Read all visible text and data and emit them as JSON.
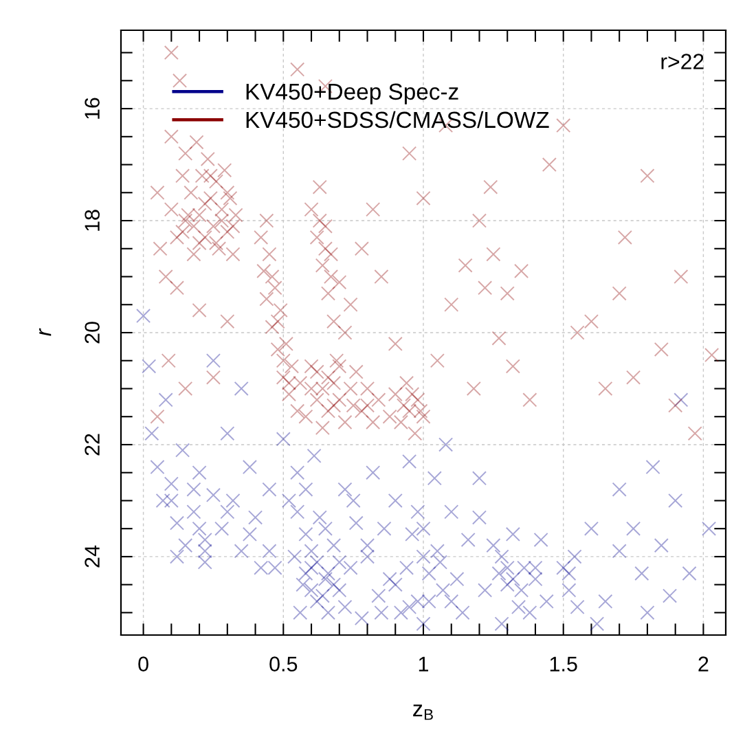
{
  "chart_data": {
    "type": "scatter",
    "xlabel": "z$_{B}$",
    "ylabel": "r",
    "annotations": [
      "r>22"
    ],
    "xlim": [
      -0.08,
      2.08
    ],
    "ylim": [
      25.4,
      14.6
    ],
    "xticks": [
      0,
      0.5,
      1,
      1.5,
      2
    ],
    "yticks": [
      16,
      18,
      20,
      22,
      24
    ],
    "grid": true,
    "legend": "top left",
    "marker": "cross",
    "series": [
      {
        "name": "KV450+Deep Spec-z",
        "color": "#00008b",
        "x": [
          0.0,
          0.02,
          0.03,
          0.05,
          0.07,
          0.08,
          0.1,
          0.12,
          0.14,
          0.15,
          0.18,
          0.2,
          0.22,
          0.22,
          0.25,
          0.28,
          0.3,
          0.32,
          0.35,
          0.38,
          0.4,
          0.42,
          0.45,
          0.12,
          0.35,
          0.25,
          0.5,
          0.52,
          0.54,
          0.55,
          0.57,
          0.58,
          0.6,
          0.61,
          0.62,
          0.63,
          0.65,
          0.66,
          0.68,
          0.7,
          0.72,
          0.74,
          0.76,
          0.78,
          0.8,
          0.82,
          0.84,
          0.86,
          0.47,
          0.56,
          0.88,
          0.9,
          0.92,
          0.94,
          0.96,
          0.98,
          1.0,
          1.0,
          1.02,
          1.04,
          1.05,
          1.07,
          1.1,
          1.12,
          1.14,
          1.16,
          0.95,
          1.08,
          1.2,
          1.22,
          1.25,
          1.27,
          1.3,
          1.32,
          1.34,
          1.36,
          1.38,
          1.4,
          1.42,
          1.44,
          1.28,
          1.2,
          1.5,
          1.52,
          1.54,
          1.55,
          1.6,
          1.65,
          1.7,
          1.75,
          1.78,
          1.8,
          1.85,
          1.88,
          1.9,
          1.95,
          2.02,
          1.82,
          1.62,
          1.92,
          1.7,
          0.58,
          0.6,
          0.62,
          0.64,
          0.66,
          0.68,
          0.7,
          0.72,
          0.6,
          0.55,
          0.58,
          0.65,
          0.75,
          0.8,
          0.9,
          0.95,
          1.0,
          1.02,
          0.98,
          1.06,
          1.3,
          1.32,
          1.35,
          1.4,
          1.28,
          1.52,
          0.2,
          0.22,
          0.18,
          0.3,
          0.1,
          0.38,
          0.45,
          0.85,
          1.1
        ],
        "values": [
          19.7,
          20.6,
          21.8,
          22.4,
          23.0,
          21.2,
          22.7,
          23.4,
          22.1,
          23.8,
          23.2,
          22.5,
          23.7,
          24.1,
          22.9,
          23.5,
          21.8,
          23.0,
          23.9,
          22.4,
          23.3,
          24.2,
          22.8,
          24.0,
          21.0,
          20.5,
          21.9,
          23.0,
          24.0,
          22.5,
          24.5,
          23.6,
          24.2,
          22.2,
          24.8,
          23.3,
          24.4,
          25.0,
          23.8,
          24.6,
          22.8,
          24.2,
          23.4,
          25.1,
          24.0,
          22.5,
          24.7,
          23.5,
          24.2,
          25.0,
          24.4,
          23.0,
          25.0,
          24.2,
          23.6,
          24.8,
          23.5,
          25.2,
          24.3,
          22.6,
          23.9,
          24.6,
          23.2,
          24.4,
          25.0,
          23.7,
          22.3,
          22.0,
          23.3,
          24.6,
          23.8,
          24.3,
          24.5,
          23.6,
          24.9,
          24.2,
          25.0,
          24.4,
          23.7,
          24.8,
          25.2,
          22.6,
          24.2,
          24.6,
          24.0,
          24.9,
          23.5,
          24.8,
          23.9,
          23.5,
          24.3,
          25.0,
          23.8,
          24.7,
          23.0,
          24.3,
          23.5,
          22.4,
          25.2,
          21.2,
          22.8,
          24.3,
          24.6,
          24.1,
          24.7,
          24.3,
          24.5,
          24.1,
          24.9,
          23.9,
          23.2,
          22.8,
          23.5,
          23.0,
          23.8,
          24.5,
          24.9,
          24.0,
          24.8,
          23.2,
          24.1,
          24.2,
          24.4,
          24.6,
          24.2,
          24.0,
          24.3,
          23.5,
          23.9,
          22.8,
          23.2,
          23.0,
          23.6,
          23.9,
          25.0,
          24.8
        ]
      },
      {
        "name": "KV450+SDSS/CMASS/LOWZ",
        "color": "#8b0000",
        "x": [
          0.05,
          0.06,
          0.08,
          0.1,
          0.1,
          0.12,
          0.13,
          0.14,
          0.15,
          0.15,
          0.17,
          0.18,
          0.19,
          0.2,
          0.21,
          0.22,
          0.23,
          0.24,
          0.25,
          0.26,
          0.27,
          0.28,
          0.29,
          0.3,
          0.31,
          0.32,
          0.33,
          0.12,
          0.09,
          0.2,
          0.15,
          0.05,
          0.25,
          0.3,
          0.1,
          0.42,
          0.43,
          0.44,
          0.45,
          0.46,
          0.47,
          0.48,
          0.49,
          0.5,
          0.51,
          0.52,
          0.53,
          0.55,
          0.6,
          0.62,
          0.63,
          0.64,
          0.65,
          0.66,
          0.67,
          0.68,
          0.7,
          0.72,
          0.69,
          0.74,
          0.56,
          0.58,
          0.6,
          0.62,
          0.64,
          0.66,
          0.68,
          0.7,
          0.72,
          0.74,
          0.76,
          0.78,
          0.8,
          0.82,
          0.84,
          0.88,
          0.9,
          0.92,
          0.94,
          0.95,
          0.97,
          0.98,
          1.0,
          0.78,
          0.85,
          0.82,
          0.9,
          1.05,
          1.1,
          1.15,
          1.2,
          1.22,
          1.25,
          1.27,
          1.3,
          1.32,
          1.35,
          1.38,
          1.18,
          1.0,
          0.95,
          1.08,
          1.24,
          1.45,
          1.55,
          1.6,
          1.65,
          1.7,
          1.75,
          1.8,
          1.85,
          1.9,
          1.97,
          2.03,
          1.5,
          0.65,
          0.55,
          1.72,
          1.92,
          0.16,
          0.18,
          0.22,
          0.26,
          0.28,
          0.3,
          0.32,
          0.2,
          0.14,
          0.24,
          0.44,
          0.46,
          0.48,
          0.5,
          0.52,
          0.63,
          0.65,
          0.67,
          0.6,
          0.64,
          0.68,
          0.7,
          0.75,
          0.8,
          0.62,
          0.66,
          0.93,
          0.96,
          0.99
        ],
        "values": [
          17.5,
          18.5,
          19.0,
          16.5,
          17.8,
          18.3,
          15.5,
          17.2,
          16.8,
          18.0,
          17.5,
          18.6,
          16.6,
          17.9,
          17.2,
          18.3,
          16.9,
          17.6,
          18.1,
          17.3,
          18.5,
          17.8,
          17.1,
          18.2,
          17.6,
          18.6,
          17.9,
          19.2,
          20.5,
          19.6,
          21.0,
          21.5,
          20.8,
          19.8,
          15.0,
          18.3,
          18.9,
          19.4,
          18.6,
          19.9,
          19.2,
          20.3,
          19.6,
          20.8,
          20.2,
          21.1,
          20.6,
          21.4,
          17.8,
          18.3,
          17.4,
          18.8,
          18.1,
          19.3,
          18.6,
          19.8,
          19.1,
          20.0,
          20.5,
          19.5,
          20.9,
          21.5,
          20.6,
          21.2,
          21.7,
          20.8,
          21.3,
          20.6,
          21.6,
          21.0,
          20.7,
          21.4,
          21.0,
          21.6,
          21.2,
          21.5,
          21.1,
          21.6,
          20.9,
          21.4,
          21.8,
          21.2,
          21.5,
          18.5,
          19.0,
          17.8,
          20.2,
          20.5,
          19.5,
          18.8,
          18.0,
          19.2,
          18.6,
          20.1,
          19.3,
          20.6,
          18.9,
          21.2,
          21.0,
          17.6,
          16.8,
          16.3,
          17.4,
          17.0,
          20.0,
          19.8,
          21.0,
          19.3,
          20.8,
          17.2,
          20.3,
          21.3,
          21.8,
          20.4,
          16.3,
          15.6,
          15.3,
          18.3,
          19.0,
          17.9,
          18.1,
          17.7,
          18.4,
          18.0,
          17.5,
          18.1,
          18.4,
          18.2,
          17.2,
          18.0,
          19.0,
          19.8,
          20.5,
          20.9,
          18.0,
          18.5,
          19.0,
          21.0,
          21.0,
          20.9,
          21.2,
          21.3,
          21.3,
          20.7,
          21.4,
          21.3,
          21.1,
          21.4
        ]
      }
    ]
  }
}
